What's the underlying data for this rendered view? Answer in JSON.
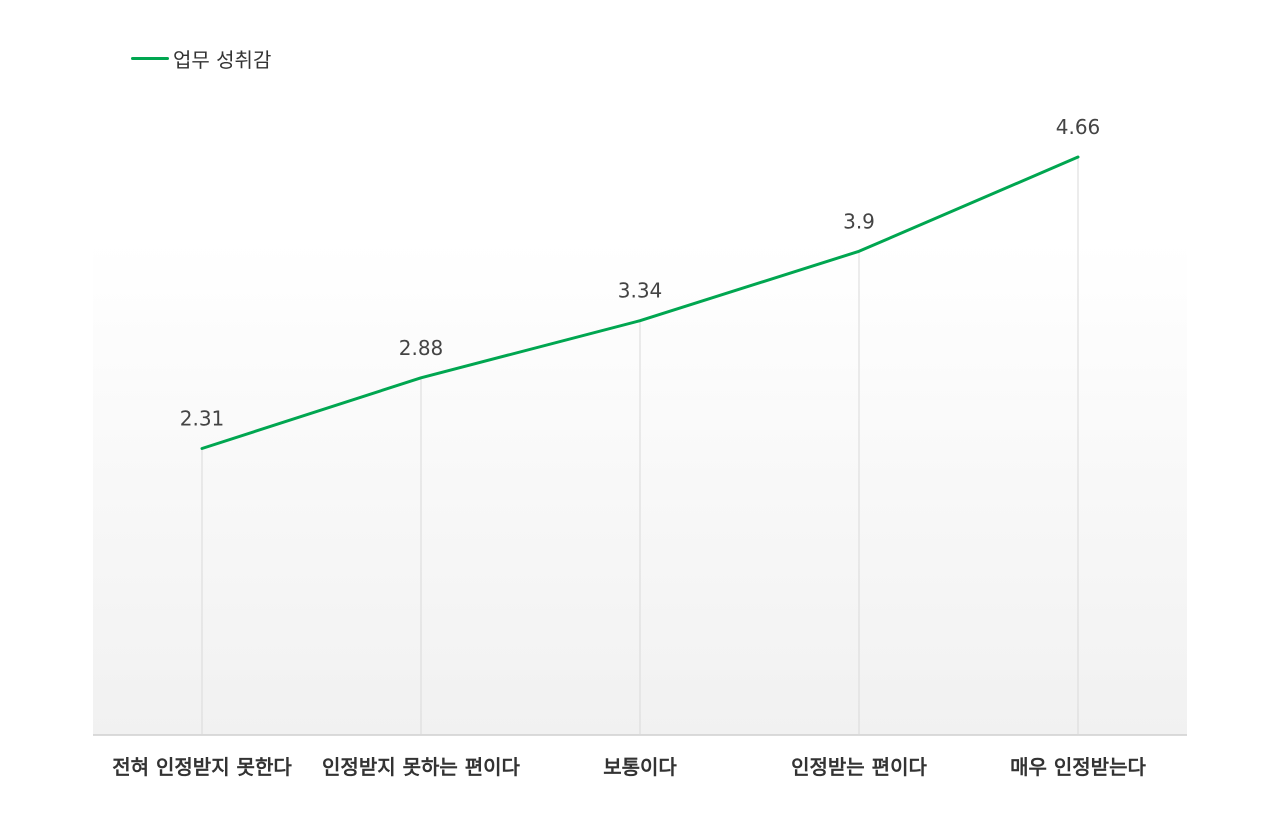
{
  "chart_data": {
    "type": "line",
    "categories": [
      "전혀 인정받지 못한다",
      "인정받지 못하는 편이다",
      "보통이다",
      "인정받는 편이다",
      "매우 인정받는다"
    ],
    "series": [
      {
        "name": "업무 성취감",
        "values": [
          2.31,
          2.88,
          3.34,
          3.9,
          4.66
        ],
        "color": "#00a650"
      }
    ],
    "data_labels": [
      "2.31",
      "2.88",
      "3.34",
      "3.9",
      "4.66"
    ],
    "ylim": [
      0,
      5.2
    ],
    "grid": "vertical",
    "legend_position": "top-left",
    "plot_background": "gradient-light-gray"
  }
}
